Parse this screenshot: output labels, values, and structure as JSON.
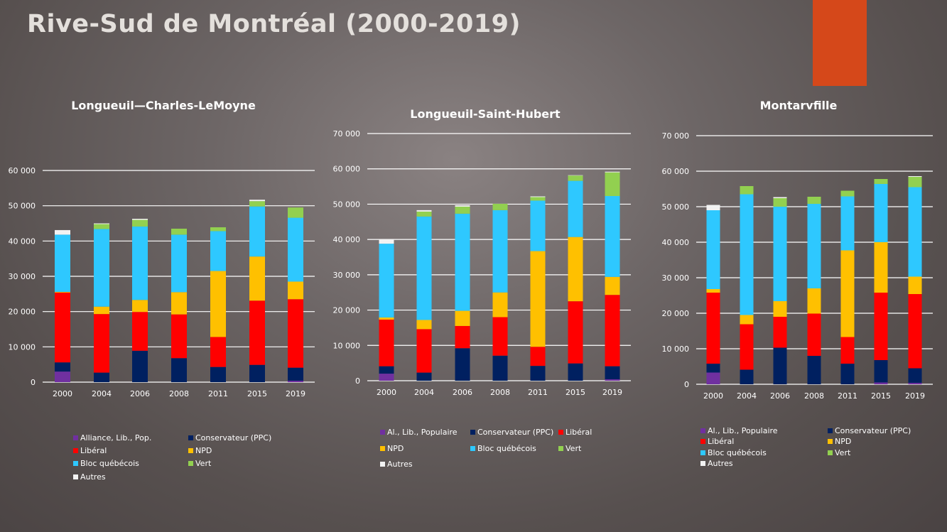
{
  "slide": {
    "title": "Rive-Sud de Montréal (2000-2019)",
    "accent_color": "#d5481a"
  },
  "chart_data": [
    {
      "type": "bar",
      "stacked": true,
      "title": "Longueuil—Charles-LeMoyne",
      "categories": [
        "2000",
        "2004",
        "2006",
        "2008",
        "2011",
        "2015",
        "2019"
      ],
      "ylim": [
        0,
        60000
      ],
      "yticks": [
        0,
        10000,
        20000,
        30000,
        40000,
        50000,
        60000
      ],
      "ytick_labels": [
        "0",
        "10 000",
        "20 000",
        "30 000",
        "40 000",
        "50 000",
        "60 000"
      ],
      "grid": true,
      "legend": "bottom",
      "series": [
        {
          "name": "Alliance, Lib., Pop.",
          "color": "#7030a0",
          "values": [
            3000,
            0,
            0,
            0,
            0,
            0,
            400
          ]
        },
        {
          "name": "Conservateur (PPC)",
          "color": "#002060",
          "values": [
            2600,
            2700,
            8900,
            6800,
            4300,
            4900,
            3700
          ]
        },
        {
          "name": "Libéral",
          "color": "#ff0000",
          "values": [
            19800,
            16600,
            11000,
            12400,
            8500,
            18200,
            19400
          ]
        },
        {
          "name": "NPD",
          "color": "#ffc000",
          "values": [
            200,
            2100,
            3400,
            6300,
            18700,
            12500,
            5000
          ]
        },
        {
          "name": "Bloc québécois",
          "color": "#2ec8ff",
          "values": [
            16200,
            22000,
            20800,
            16300,
            11300,
            14200,
            18100
          ]
        },
        {
          "name": "Vert",
          "color": "#92d050",
          "values": [
            0,
            1400,
            1900,
            1700,
            1100,
            1500,
            2900
          ]
        },
        {
          "name": "Autres",
          "color": "#f2f2f2",
          "values": [
            1300,
            200,
            300,
            0,
            0,
            400,
            0
          ]
        }
      ]
    },
    {
      "type": "bar",
      "stacked": true,
      "title": "Longueuil-Saint-Hubert",
      "categories": [
        "2000",
        "2004",
        "2006",
        "2008",
        "2011",
        "2015",
        "2019"
      ],
      "ylim": [
        0,
        70000
      ],
      "yticks": [
        0,
        10000,
        20000,
        30000,
        40000,
        50000,
        60000,
        70000
      ],
      "ytick_labels": [
        "0",
        "10 000",
        "20 000",
        "30 000",
        "40 000",
        "50 000",
        "60 000",
        "70 000"
      ],
      "grid": true,
      "legend": "bottom",
      "series": [
        {
          "name": "Al., Lib., Populaire",
          "color": "#7030a0",
          "values": [
            2000,
            0,
            0,
            0,
            0,
            0,
            400
          ]
        },
        {
          "name": "Conservateur (PPC)",
          "color": "#002060",
          "values": [
            2100,
            2300,
            9200,
            7100,
            4200,
            4900,
            3700
          ]
        },
        {
          "name": "Libéral",
          "color": "#ff0000",
          "values": [
            13200,
            12300,
            6300,
            10900,
            5400,
            17600,
            20200
          ]
        },
        {
          "name": "NPD",
          "color": "#ffc000",
          "values": [
            600,
            2600,
            4300,
            7000,
            27100,
            18200,
            5100
          ]
        },
        {
          "name": "Bloc québécois",
          "color": "#2ec8ff",
          "values": [
            20900,
            29300,
            27500,
            23300,
            14300,
            15900,
            22900
          ]
        },
        {
          "name": "Vert",
          "color": "#92d050",
          "values": [
            0,
            1400,
            2000,
            1800,
            1000,
            1500,
            6700
          ]
        },
        {
          "name": "Autres",
          "color": "#f2f2f2",
          "values": [
            1200,
            400,
            400,
            0,
            200,
            100,
            200
          ]
        }
      ]
    },
    {
      "type": "bar",
      "stacked": true,
      "title": "Montarvfille",
      "categories": [
        "2000",
        "2004",
        "2006",
        "2008",
        "2011",
        "2015",
        "2019"
      ],
      "ylim": [
        0,
        70000
      ],
      "yticks": [
        0,
        10000,
        20000,
        30000,
        40000,
        50000,
        60000,
        70000
      ],
      "ytick_labels": [
        "0",
        "10 000",
        "20 000",
        "30 000",
        "40 000",
        "50 000",
        "60 000",
        "70 000"
      ],
      "grid": true,
      "legend": "bottom",
      "series": [
        {
          "name": "Al., Lib., Populaire",
          "color": "#7030a0",
          "values": [
            3300,
            0,
            0,
            0,
            0,
            500,
            400
          ]
        },
        {
          "name": "Conservateur (PPC)",
          "color": "#002060",
          "values": [
            2500,
            4100,
            10300,
            8000,
            5800,
            6300,
            4100
          ]
        },
        {
          "name": "Libéral",
          "color": "#ff0000",
          "values": [
            20000,
            12800,
            8700,
            11900,
            7500,
            19000,
            20900
          ]
        },
        {
          "name": "NPD",
          "color": "#ffc000",
          "values": [
            1000,
            2600,
            4400,
            7100,
            24400,
            14200,
            4900
          ]
        },
        {
          "name": "Bloc québécois",
          "color": "#2ec8ff",
          "values": [
            22200,
            34000,
            26600,
            23800,
            15200,
            16400,
            25200
          ]
        },
        {
          "name": "Vert",
          "color": "#92d050",
          "values": [
            0,
            2300,
            2400,
            2000,
            1600,
            1400,
            2900
          ]
        },
        {
          "name": "Autres",
          "color": "#f2f2f2",
          "values": [
            1500,
            0,
            300,
            0,
            0,
            0,
            200
          ]
        }
      ]
    }
  ]
}
